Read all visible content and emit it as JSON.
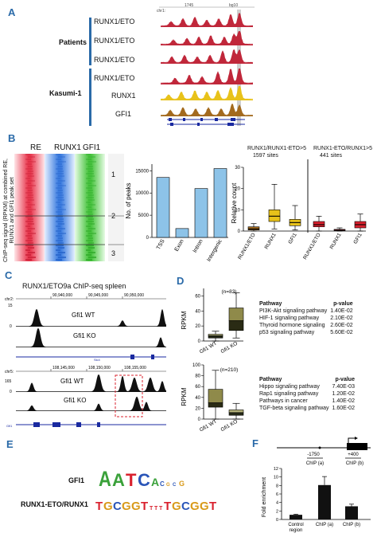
{
  "panels": {
    "A": "A",
    "B": "B",
    "C": "C",
    "D": "D",
    "E": "E",
    "F": "F"
  },
  "panelA": {
    "coord_left": "1745",
    "coord_right": "bg10",
    "chr": "chr1:",
    "group_patients": "Patients",
    "group_kasumi": "Kasumi-1",
    "tracks": [
      {
        "label": "RUNX1/ETO",
        "color": "#c0273a"
      },
      {
        "label": "RUNX1/ETO",
        "color": "#c0273a"
      },
      {
        "label": "RUNX1/ETO",
        "color": "#c0273a"
      },
      {
        "label": "RUNX1/ETO",
        "color": "#c0273a"
      },
      {
        "label": "RUNX1",
        "color": "#e8c21a"
      },
      {
        "label": "GFI1",
        "color": "#a36a1e"
      }
    ]
  },
  "panelB": {
    "heat_cols": [
      "RE",
      "RUNX1",
      "GFI1"
    ],
    "clusters": [
      "1",
      "2",
      "3"
    ],
    "ylabel": "ChIP-seq signal (RPKM) at combined RE, RUNX1 and GFI1 peak set",
    "header_left": "RUNX1/RUNX1-ETO>5",
    "header_left_sites": "1597 sites",
    "header_right": "RUNX1-ETO/RUNX1>5",
    "header_right_sites": "441 sites",
    "box_ylabel": "Relative count",
    "box_xticks": [
      "RUNX1/ETO",
      "RUNX1",
      "GFI1",
      "RUNX1/ETO",
      "RUNX1",
      "GFI1"
    ]
  },
  "chart_data": [
    {
      "type": "bar",
      "categories": [
        "TSS",
        "Exon",
        "Intron",
        "Intergenic"
      ],
      "values": [
        13500,
        2000,
        11000,
        15500
      ],
      "title": "",
      "xlabel": "",
      "ylabel": "No. of peaks",
      "ylim": [
        0,
        16500
      ],
      "yticks": [
        0,
        5000,
        10000,
        15000
      ],
      "color": "#8dc3e8"
    },
    {
      "type": "box",
      "categories": [
        "RUNX1/ETO",
        "RUNX1",
        "GFI1",
        "RUNX1/ETO",
        "RUNX1",
        "GFI1"
      ],
      "boxes": [
        {
          "min": 0,
          "q1": 0.5,
          "median": 1.0,
          "q3": 2.0,
          "max": 3.5,
          "color": "#a36a1e"
        },
        {
          "min": 1,
          "q1": 4.5,
          "median": 7,
          "q3": 10,
          "max": 22,
          "color": "#e8c21a"
        },
        {
          "min": 0.5,
          "q1": 2.5,
          "median": 4,
          "q3": 5.5,
          "max": 12,
          "color": "#e8c21a"
        },
        {
          "min": 0,
          "q1": 2,
          "median": 3,
          "q3": 4.5,
          "max": 7,
          "color": "#d9212e"
        },
        {
          "min": 0,
          "q1": 0.2,
          "median": 0.4,
          "q3": 0.8,
          "max": 1.5,
          "color": "#d9212e"
        },
        {
          "min": 0,
          "q1": 1.5,
          "median": 3,
          "q3": 4.5,
          "max": 8,
          "color": "#d9212e"
        }
      ],
      "ylabel": "Relative count",
      "ylim": [
        0,
        30
      ],
      "yticks": [
        0,
        10,
        20,
        30
      ]
    },
    {
      "type": "box",
      "title": "(n=83)",
      "categories": [
        "Gfi1 WT",
        "Gfi1 KO"
      ],
      "boxes": [
        {
          "min": 0,
          "q1": 4,
          "median": 7,
          "q3": 9,
          "max": 13
        },
        {
          "min": 4,
          "q1": 14,
          "median": 27,
          "q3": 44,
          "max": 64
        }
      ],
      "ylabel": "RPKM",
      "ylim": [
        0,
        70
      ],
      "yticks": [
        0,
        20,
        40,
        60
      ]
    },
    {
      "type": "box",
      "title": "(n=210)",
      "categories": [
        "Gfi1 WT",
        "Gfi1 KO"
      ],
      "boxes": [
        {
          "min": 0,
          "q1": 22,
          "median": 30,
          "q3": 55,
          "max": 90
        },
        {
          "min": 0,
          "q1": 7,
          "median": 12,
          "q3": 17,
          "max": 29
        }
      ],
      "ylabel": "RPKM",
      "ylim": [
        0,
        100
      ],
      "yticks": [
        0,
        20,
        40,
        60,
        80,
        100
      ]
    },
    {
      "type": "bar",
      "categories": [
        "Control region",
        "ChIP (a)",
        "ChIP (b)"
      ],
      "values": [
        1.1,
        8.1,
        3.1
      ],
      "errors": [
        0.15,
        2.0,
        0.5
      ],
      "ylabel": "Fold enrichment",
      "ylim": [
        0,
        12
      ],
      "yticks": [
        0,
        2,
        4,
        6,
        8,
        10,
        12
      ]
    }
  ],
  "panelC": {
    "title": "RUNX1/ETO9a ChIP-seq spleen",
    "top": {
      "chr": "chr2:",
      "ticks": [
        "90,940,000",
        "90,945,000",
        "90,950,000"
      ],
      "scale_hi": "15",
      "scale_lo": "0",
      "gene": "Slc4",
      "tracks": [
        "Gfi1 WT",
        "Gfi1 KO"
      ]
    },
    "bottom": {
      "chr": "chr5:",
      "ticks": [
        "108,145,000",
        "108,150,000",
        "108,155,000"
      ],
      "scale_hi": "165",
      "scale_lo": "0",
      "gene": "Gfi1",
      "tracks": [
        "Gfi1 WT",
        "Gfi1 KO"
      ]
    }
  },
  "panelD": {
    "table1": {
      "head": [
        "Pathway",
        "p-value"
      ],
      "rows": [
        [
          "PI3K-Akt signaling pathway",
          "1.40E-02"
        ],
        [
          "HIF-1 signaling pathway",
          "2.10E-02"
        ],
        [
          "Thyroid hormone signaling",
          "2.60E-02"
        ],
        [
          "p53 signaling pathway",
          "5.60E-02"
        ]
      ]
    },
    "table2": {
      "head": [
        "Pathway",
        "p-value"
      ],
      "rows": [
        [
          "Hippo signaling pathway",
          "7.40E-03"
        ],
        [
          "Rap1 signaling pathway",
          "1.20E-02"
        ],
        [
          "Pathways in cancer",
          "1.40E-02"
        ],
        [
          "TGF-beta signaling pathway",
          "1.60E-02"
        ]
      ]
    }
  },
  "panelE": {
    "gfi1_label": "GFI1",
    "runx_label": "RUNX1-ETO/RUNX1",
    "gfi1_logo": "AATCAC G",
    "runx_logo": "TGCGGTT TGCGGT"
  },
  "panelF": {
    "pos_a": "-1750",
    "pos_b": "+400",
    "chip_a": "ChIP (a)",
    "chip_b": "ChIP (b)"
  }
}
